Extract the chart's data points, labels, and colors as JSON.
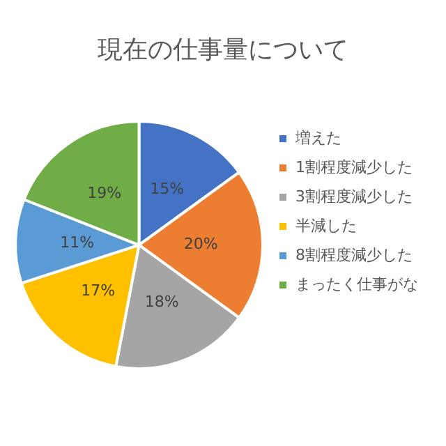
{
  "chart_data": {
    "type": "pie",
    "title": "現在の仕事量について",
    "categories": [
      "増えた",
      "1割程度減少した",
      "3割程度減少した",
      "半減した",
      "8割程度減少した",
      "まったく仕事がな"
    ],
    "values": [
      15,
      20,
      18,
      17,
      11,
      19
    ],
    "colors": [
      "#4472c4",
      "#ed7d31",
      "#a5a5a5",
      "#ffc000",
      "#5b9bd5",
      "#70ad47"
    ],
    "value_labels": [
      "15%",
      "20%",
      "18%",
      "17%",
      "11%",
      "19%"
    ],
    "legend": "right"
  }
}
